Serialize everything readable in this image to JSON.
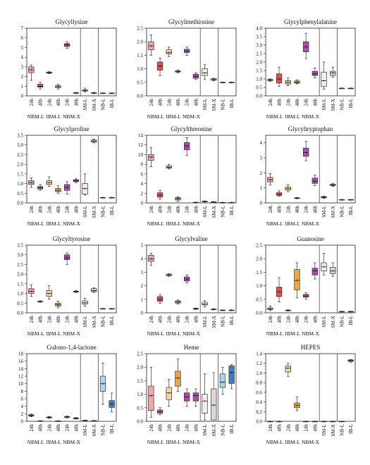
{
  "figure": {
    "groups": [
      "NBM-L",
      "IBM-L",
      "NBM-X"
    ],
    "colors": {
      "nbml": "#f4a6a6",
      "nbml_dark": "#e05252",
      "ibml": "#f3d9a4",
      "ibml_dark": "#f0a640",
      "nbmx": "#b04ab0",
      "nbmx_dark": "#8a2a8a",
      "sml": "#eeeeea",
      "smx": "#d9d9d9",
      "nbl": "#a8d8ee",
      "ibl": "#3f7fc0"
    }
  },
  "chart_data": [
    {
      "type": "box",
      "title": "Glycyllysine",
      "ylim": [
        0,
        7
      ],
      "yticks": [
        0,
        1,
        2,
        3,
        4,
        5,
        6,
        7
      ],
      "categories": [
        "24h",
        "48h",
        "24h",
        "48h",
        "24h",
        "48h",
        "SM-L",
        "SM-X",
        "NB-L",
        "IB-L"
      ],
      "boxes": [
        [
          1.6,
          2.4,
          2.7,
          3.0,
          3.2
        ],
        [
          0.7,
          0.9,
          1.0,
          1.2,
          1.4
        ],
        [
          2.3,
          2.35,
          2.4,
          2.45,
          2.5
        ],
        [
          0.7,
          0.85,
          0.95,
          1.05,
          1.2
        ],
        [
          4.9,
          5.1,
          5.3,
          5.4,
          5.6
        ],
        [
          0.25,
          0.28,
          0.3,
          0.32,
          0.35
        ],
        [
          0.4,
          0.5,
          0.55,
          0.62,
          0.8
        ],
        [
          0.25,
          0.28,
          0.3,
          0.32,
          0.35
        ],
        [
          0.25,
          0.27,
          0.28,
          0.29,
          0.3
        ],
        [
          0.25,
          0.27,
          0.28,
          0.29,
          0.3
        ]
      ]
    },
    {
      "type": "box",
      "title": "Glycylmethionine",
      "ylim": [
        0,
        2.5
      ],
      "yticks": [
        0,
        0.5,
        1.0,
        1.5,
        2.0,
        2.5
      ],
      "categories": [
        "24h",
        "48h",
        "24h",
        "48h",
        "24h",
        "48h",
        "SM-L",
        "SM-X",
        "NB-L",
        "IB-L"
      ],
      "boxes": [
        [
          1.5,
          1.7,
          1.85,
          2.0,
          2.25
        ],
        [
          0.75,
          0.95,
          1.1,
          1.25,
          1.4
        ],
        [
          1.45,
          1.55,
          1.6,
          1.7,
          1.8
        ],
        [
          0.85,
          0.88,
          0.9,
          0.92,
          0.95
        ],
        [
          1.5,
          1.6,
          1.65,
          1.72,
          1.8
        ],
        [
          0.6,
          0.65,
          0.72,
          0.8,
          0.85
        ],
        [
          0.6,
          0.75,
          0.85,
          1.0,
          1.15
        ],
        [
          0.55,
          0.58,
          0.6,
          0.63,
          0.65
        ],
        [
          0.5,
          0.5,
          0.5,
          0.5,
          0.5
        ],
        [
          0.5,
          0.5,
          0.5,
          0.5,
          0.5
        ]
      ]
    },
    {
      "type": "box",
      "title": "Glycylphenylalanine",
      "ylim": [
        0,
        4
      ],
      "yticks": [
        0,
        0.5,
        1.0,
        1.5,
        2.0,
        2.5,
        3.0,
        3.5,
        4.0
      ],
      "categories": [
        "24h",
        "48h",
        "24h",
        "48h",
        "24h",
        "48h",
        "SM-L",
        "SM-X",
        "NB-L",
        "IB-L"
      ],
      "boxes": [
        [
          0.85,
          0.9,
          0.93,
          0.97,
          1.0
        ],
        [
          0.55,
          0.75,
          1.0,
          1.3,
          1.7
        ],
        [
          0.6,
          0.7,
          0.8,
          0.9,
          1.05
        ],
        [
          0.7,
          0.75,
          0.8,
          0.88,
          0.95
        ],
        [
          2.2,
          2.6,
          2.9,
          3.2,
          3.7
        ],
        [
          1.05,
          1.2,
          1.3,
          1.45,
          1.65
        ],
        [
          0.4,
          0.55,
          0.9,
          1.4,
          2.0
        ],
        [
          1.1,
          1.2,
          1.35,
          1.45,
          1.7
        ],
        [
          0.45,
          0.45,
          0.45,
          0.45,
          0.45
        ],
        [
          0.45,
          0.45,
          0.45,
          0.45,
          0.45
        ]
      ]
    },
    {
      "type": "box",
      "title": "Glycylproline",
      "ylim": [
        0,
        3.5
      ],
      "yticks": [
        0,
        0.5,
        1.0,
        1.5,
        2.0,
        2.5,
        3.0,
        3.5
      ],
      "categories": [
        "24h",
        "48h",
        "24h",
        "48h",
        "24h",
        "48h",
        "SM-L",
        "SM-X",
        "NB-L",
        "IB-L"
      ],
      "boxes": [
        [
          0.8,
          0.95,
          1.05,
          1.15,
          1.3
        ],
        [
          0.65,
          0.72,
          0.78,
          0.85,
          0.95
        ],
        [
          0.85,
          0.95,
          1.05,
          1.15,
          1.35
        ],
        [
          0.5,
          0.58,
          0.65,
          0.75,
          0.9
        ],
        [
          0.45,
          0.65,
          0.8,
          0.95,
          1.1
        ],
        [
          1.05,
          1.1,
          1.15,
          1.2,
          1.25
        ],
        [
          0.4,
          0.45,
          0.75,
          1.0,
          1.5
        ],
        [
          3.1,
          3.15,
          3.2,
          3.25,
          3.3
        ],
        [
          0.28,
          0.28,
          0.28,
          0.28,
          0.28
        ],
        [
          0.28,
          0.28,
          0.28,
          0.28,
          0.28
        ]
      ]
    },
    {
      "type": "box",
      "title": "Glycylthreonine",
      "ylim": [
        0,
        14
      ],
      "yticks": [
        0,
        2,
        4,
        6,
        8,
        10,
        12,
        14
      ],
      "categories": [
        "24h",
        "48h",
        "24h",
        "48h",
        "24h",
        "48h",
        "SM-L",
        "SM-X",
        "NB-L",
        "IB-L"
      ],
      "boxes": [
        [
          7.5,
          8.8,
          9.5,
          10.0,
          11.5
        ],
        [
          0.8,
          1.2,
          1.6,
          2.1,
          2.6
        ],
        [
          7.0,
          7.2,
          7.4,
          7.7,
          8.0
        ],
        [
          0.3,
          0.6,
          0.9,
          1.1,
          1.3
        ],
        [
          9.8,
          11.0,
          11.8,
          12.5,
          13.5
        ],
        [
          0.05,
          0.08,
          0.1,
          0.12,
          0.15
        ],
        [
          0.2,
          0.25,
          0.3,
          0.35,
          0.4
        ],
        [
          0.15,
          0.18,
          0.2,
          0.22,
          0.25
        ],
        [
          0.1,
          0.1,
          0.1,
          0.1,
          0.1
        ],
        [
          0.1,
          0.1,
          0.1,
          0.1,
          0.1
        ]
      ]
    },
    {
      "type": "box",
      "title": "Glycyltryptophan",
      "ylim": [
        0,
        4.5
      ],
      "yticks": [
        0,
        1,
        2,
        3,
        4
      ],
      "categories": [
        "24h",
        "48h",
        "24h",
        "48h",
        "24h",
        "48h",
        "SM-L",
        "SM-X",
        "NB-L",
        "IB-L"
      ],
      "boxes": [
        [
          1.2,
          1.4,
          1.55,
          1.7,
          1.95
        ],
        [
          0.45,
          0.5,
          0.58,
          0.68,
          0.8
        ],
        [
          0.75,
          0.85,
          0.95,
          1.05,
          1.2
        ],
        [
          0.28,
          0.3,
          0.32,
          0.34,
          0.36
        ],
        [
          2.8,
          3.1,
          3.35,
          3.65,
          4.1
        ],
        [
          1.15,
          1.3,
          1.45,
          1.65,
          1.85
        ],
        [
          0.3,
          0.34,
          0.38,
          0.42,
          0.45
        ],
        [
          1.1,
          1.15,
          1.2,
          1.25,
          1.3
        ],
        [
          0.22,
          0.22,
          0.22,
          0.22,
          0.22
        ],
        [
          0.22,
          0.22,
          0.22,
          0.22,
          0.22
        ]
      ]
    },
    {
      "type": "box",
      "title": "Glycyltyrosine",
      "ylim": [
        0,
        3.5
      ],
      "yticks": [
        0,
        0.5,
        1.0,
        1.5,
        2.0,
        2.5,
        3.0,
        3.5
      ],
      "categories": [
        "24h",
        "48h",
        "24h",
        "48h",
        "24h",
        "48h",
        "SM-L",
        "SM-X",
        "NB-L",
        "IB-L"
      ],
      "boxes": [
        [
          0.85,
          1.0,
          1.12,
          1.25,
          1.45
        ],
        [
          0.55,
          0.57,
          0.58,
          0.6,
          0.62
        ],
        [
          0.7,
          0.85,
          1.0,
          1.15,
          1.4
        ],
        [
          0.25,
          0.35,
          0.42,
          0.5,
          0.6
        ],
        [
          2.5,
          2.75,
          2.85,
          3.0,
          3.1
        ],
        [
          1.05,
          1.08,
          1.1,
          1.12,
          1.15
        ],
        [
          0.35,
          0.45,
          0.52,
          0.62,
          0.75
        ],
        [
          1.05,
          1.1,
          1.15,
          1.25,
          1.3
        ],
        [
          0.22,
          0.22,
          0.22,
          0.22,
          0.22
        ],
        [
          0.22,
          0.22,
          0.22,
          0.22,
          0.22
        ]
      ]
    },
    {
      "type": "box",
      "title": "Glycylvaline",
      "ylim": [
        0,
        5
      ],
      "yticks": [
        0,
        1,
        2,
        3,
        4,
        5
      ],
      "categories": [
        "24h",
        "48h",
        "24h",
        "48h",
        "24h",
        "48h",
        "SM-L",
        "SM-X",
        "NB-L",
        "IB-L"
      ],
      "boxes": [
        [
          3.5,
          3.8,
          4.0,
          4.25,
          4.4
        ],
        [
          0.7,
          0.85,
          1.0,
          1.2,
          1.35
        ],
        [
          2.7,
          2.75,
          2.8,
          2.85,
          2.9
        ],
        [
          0.65,
          0.72,
          0.8,
          0.88,
          0.95
        ],
        [
          2.2,
          2.35,
          2.5,
          2.65,
          2.8
        ],
        [
          0.25,
          0.27,
          0.3,
          0.32,
          0.35
        ],
        [
          0.45,
          0.58,
          0.65,
          0.78,
          0.9
        ],
        [
          0.22,
          0.24,
          0.26,
          0.28,
          0.3
        ],
        [
          0.2,
          0.2,
          0.2,
          0.2,
          0.2
        ],
        [
          0.2,
          0.2,
          0.2,
          0.2,
          0.2
        ]
      ]
    },
    {
      "type": "box",
      "title": "Guanosine",
      "ylim": [
        0,
        2.5
      ],
      "yticks": [
        0,
        0.5,
        1.0,
        1.5,
        2.0,
        2.5
      ],
      "categories": [
        "24h",
        "48h",
        "24h",
        "48h",
        "24h",
        "48h",
        "SM-L",
        "SM-X",
        "NB-L",
        "IB-L"
      ],
      "boxes": [
        [
          0.08,
          0.12,
          0.15,
          0.18,
          0.25
        ],
        [
          0.4,
          0.6,
          0.78,
          0.95,
          1.3
        ],
        [
          0.07,
          0.08,
          0.09,
          0.1,
          0.11
        ],
        [
          0.55,
          0.85,
          1.2,
          1.6,
          1.85
        ],
        [
          0.5,
          0.58,
          0.62,
          0.68,
          0.75
        ],
        [
          1.25,
          1.4,
          1.55,
          1.65,
          1.85
        ],
        [
          1.4,
          1.55,
          1.7,
          1.85,
          2.2
        ],
        [
          1.35,
          1.45,
          1.55,
          1.68,
          1.85
        ],
        [
          0.05,
          0.05,
          0.05,
          0.05,
          0.05
        ],
        [
          0.05,
          0.05,
          0.05,
          0.05,
          0.05
        ]
      ]
    },
    {
      "type": "box",
      "title": "Gulono-1,4-lactone",
      "ylim": [
        0,
        18
      ],
      "yticks": [
        0,
        2,
        4,
        6,
        8,
        10,
        12,
        14,
        16,
        18
      ],
      "categories": [
        "24h",
        "48h",
        "24h",
        "48h",
        "24h",
        "48h",
        "SM-L",
        "SM-X",
        "NB-L",
        "IB-L"
      ],
      "boxes": [
        [
          1.2,
          1.4,
          1.6,
          1.75,
          1.9
        ],
        [
          0.05,
          0.08,
          0.1,
          0.12,
          0.15
        ],
        [
          0.8,
          0.95,
          1.05,
          1.15,
          1.3
        ],
        [
          0.05,
          0.07,
          0.08,
          0.09,
          0.1
        ],
        [
          0.9,
          1.05,
          1.15,
          1.25,
          1.4
        ],
        [
          0.6,
          0.7,
          0.8,
          0.9,
          1.0
        ],
        [
          0.1,
          0.15,
          0.2,
          0.25,
          0.3
        ],
        [
          0.1,
          0.12,
          0.15,
          0.18,
          0.2
        ],
        [
          4.5,
          8.0,
          10.0,
          12.0,
          15.5
        ],
        [
          2.5,
          3.7,
          4.6,
          5.5,
          7.5
        ]
      ]
    },
    {
      "type": "box",
      "title": "Heme",
      "ylim": [
        0,
        2.5
      ],
      "yticks": [
        0,
        0.5,
        1.0,
        1.5,
        2.0,
        2.5
      ],
      "categories": [
        "24h",
        "48h",
        "24h",
        "48h",
        "24h",
        "48h",
        "SM-L",
        "SM-X",
        "NB-L",
        "IB-L"
      ],
      "boxes": [
        [
          0.15,
          0.4,
          0.95,
          1.3,
          2.0
        ],
        [
          0.25,
          0.3,
          0.35,
          0.42,
          0.5
        ],
        [
          0.55,
          0.8,
          1.05,
          1.25,
          1.55
        ],
        [
          1.1,
          1.3,
          1.6,
          1.85,
          2.3
        ],
        [
          0.55,
          0.75,
          0.9,
          1.05,
          1.2
        ],
        [
          0.55,
          0.75,
          0.95,
          1.05,
          1.2
        ],
        [
          0.05,
          0.3,
          0.75,
          1.0,
          1.75
        ],
        [
          0.05,
          0.05,
          0.6,
          1.2,
          1.8
        ],
        [
          1.0,
          1.25,
          1.45,
          1.75,
          2.0
        ],
        [
          1.2,
          1.4,
          1.8,
          2.05,
          2.1
        ]
      ]
    },
    {
      "type": "box",
      "title": "HEPES",
      "ylim": [
        0,
        1.4
      ],
      "yticks": [
        0,
        0.2,
        0.4,
        0.6,
        0.8,
        1.0,
        1.2,
        1.4
      ],
      "categories": [
        "24h",
        "48h",
        "24h",
        "48h",
        "24h",
        "48h",
        "SM-L",
        "SM-X",
        "NB-L",
        "IB-L"
      ],
      "boxes": [
        [
          0,
          0,
          0,
          0,
          0
        ],
        [
          0,
          0,
          0,
          0,
          0
        ],
        [
          0.93,
          1.02,
          1.1,
          1.15,
          1.2
        ],
        [
          0.22,
          0.28,
          0.33,
          0.38,
          0.5
        ],
        [
          0,
          0,
          0,
          0,
          0
        ],
        [
          0,
          0,
          0,
          0,
          0
        ],
        [
          0,
          0,
          0,
          0,
          0
        ],
        [
          0,
          0,
          0,
          0,
          0
        ],
        [
          0,
          0,
          0,
          0,
          0
        ],
        [
          1.22,
          1.24,
          1.26,
          1.27,
          1.28
        ]
      ]
    }
  ]
}
